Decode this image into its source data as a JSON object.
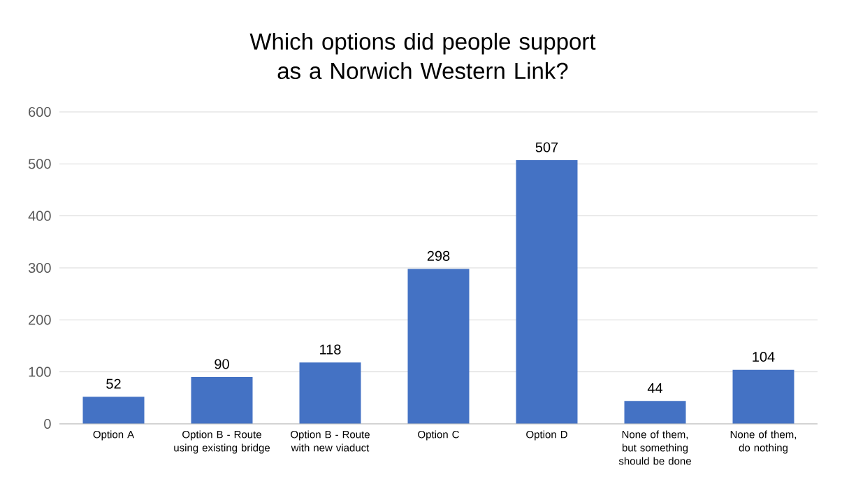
{
  "chart_data": {
    "type": "bar",
    "title": "Which options did people support as a Norwich Western Link?",
    "categories": [
      "Option A",
      "Option B - Route using existing bridge",
      "Option B - Route with new viaduct",
      "Option C",
      "Option D",
      "None of them, but something should be done",
      "None of them, do nothing"
    ],
    "values": [
      52,
      90,
      118,
      298,
      507,
      44,
      104
    ],
    "color": "#4472c4",
    "ylim": [
      0,
      600
    ],
    "yticks": [
      0,
      100,
      200,
      300,
      400,
      500,
      600
    ],
    "grid": "y",
    "data_labels": true
  }
}
